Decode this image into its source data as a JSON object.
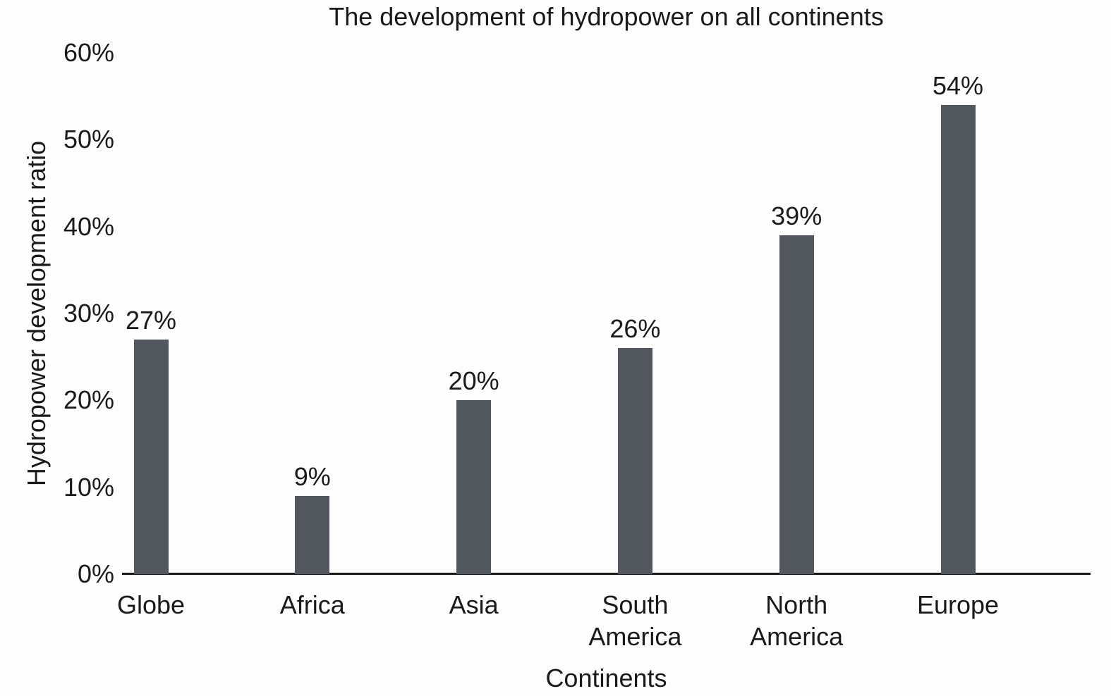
{
  "chart_data": {
    "type": "bar",
    "title": "The development of hydropower on all continents",
    "xlabel": "Continents",
    "ylabel": "Hydropower development ratio",
    "categories": [
      "Globe",
      "Africa",
      "Asia",
      "South America",
      "North America",
      "Europe"
    ],
    "values": [
      27,
      9,
      20,
      26,
      39,
      54
    ],
    "value_labels": [
      "27%",
      "9%",
      "20%",
      "26%",
      "39%",
      "54%"
    ],
    "yticks": [
      "0%",
      "10%",
      "20%",
      "30%",
      "40%",
      "50%",
      "60%"
    ],
    "ylim": [
      0,
      60
    ],
    "grid": false,
    "legend": false,
    "bar_color": "#53575e",
    "text_color": "#1a1a1a",
    "axis_color": "#1a1a1a",
    "background_color": "#fdfdfd"
  }
}
